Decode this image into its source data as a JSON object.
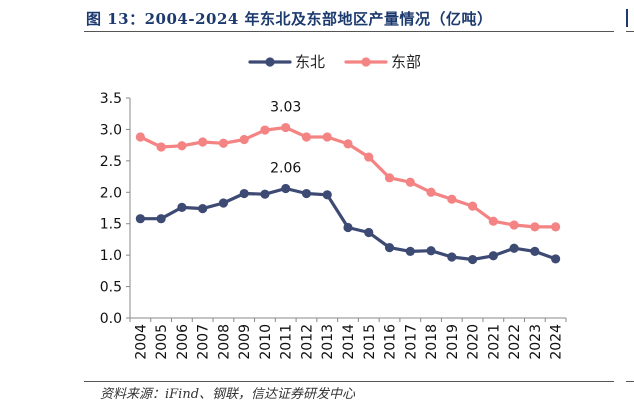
{
  "header": {
    "title": "图 13：2004-2024 年东北及东部地区产量情况（亿吨）"
  },
  "footer": {
    "source": "资料来源：iFind、钢联，信达证券研发中心"
  },
  "colors": {
    "northeast": "#3d4a73",
    "east": "#f48484",
    "title": "#1c3a6e"
  },
  "chart_data": {
    "type": "line",
    "x": [
      "2004",
      "2005",
      "2006",
      "2007",
      "2008",
      "2009",
      "2010",
      "2011",
      "2012",
      "2013",
      "2014",
      "2015",
      "2016",
      "2017",
      "2018",
      "2019",
      "2020",
      "2021",
      "2022",
      "2023",
      "2024"
    ],
    "series": [
      {
        "name": "东北",
        "color": "#3d4a73",
        "values": [
          1.58,
          1.58,
          1.76,
          1.74,
          1.83,
          1.98,
          1.97,
          2.06,
          1.98,
          1.96,
          1.44,
          1.36,
          1.12,
          1.06,
          1.07,
          0.97,
          0.93,
          0.99,
          1.11,
          1.06,
          0.94
        ]
      },
      {
        "name": "东部",
        "color": "#f48484",
        "values": [
          2.88,
          2.72,
          2.74,
          2.8,
          2.78,
          2.84,
          2.99,
          3.03,
          2.88,
          2.88,
          2.77,
          2.56,
          2.23,
          2.16,
          2.0,
          1.89,
          1.78,
          1.54,
          1.48,
          1.45,
          1.45
        ]
      }
    ],
    "annotations": [
      {
        "series": "东部",
        "x": "2011",
        "text": "3.03"
      },
      {
        "series": "东北",
        "x": "2011",
        "text": "2.06"
      }
    ],
    "yticks": [
      "0.0",
      "0.5",
      "1.0",
      "1.5",
      "2.0",
      "2.5",
      "3.0",
      "3.5"
    ],
    "ylim": [
      0,
      3.5
    ],
    "legend": "top-center",
    "grid": false
  }
}
